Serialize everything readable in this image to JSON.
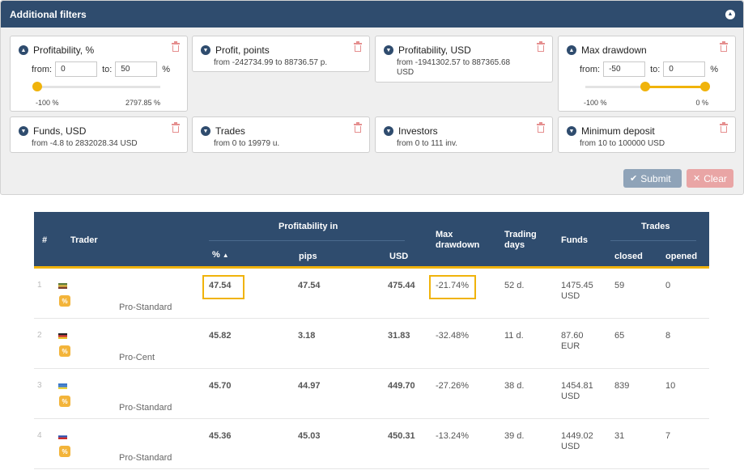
{
  "panel": {
    "title": "Additional filters",
    "collapse_icon": "chevron-up-icon",
    "filters": [
      {
        "id": "profitability-pct",
        "title": "Profitability, %",
        "from_label": "from:",
        "from_value": "0",
        "to_label": "to:",
        "to_value": "50",
        "unit": "%",
        "scale_min": "-100 %",
        "scale_max": "2797.85 %",
        "range_low_pct": 0,
        "range_high_pct": 0
      },
      {
        "id": "profit-points",
        "title": "Profit, points",
        "range": "from -242734.99 to 88736.57 p."
      },
      {
        "id": "profitability-usd",
        "title": "Profitability, USD",
        "range_line1": "from -1941302.57 to 887365.68",
        "range_line2": "USD"
      },
      {
        "id": "max-drawdown",
        "title": "Max drawdown",
        "from_label": "from:",
        "from_value": "-50",
        "to_label": "to:",
        "to_value": "0",
        "unit": "%",
        "scale_min": "-100 %",
        "scale_max": "0 %",
        "range_low_pct": 50,
        "range_high_pct": 100
      },
      {
        "id": "funds-usd",
        "title": "Funds, USD",
        "range": "from -4.8 to 2832028.34 USD"
      },
      {
        "id": "trades",
        "title": "Trades",
        "range": "from 0 to 19979 u."
      },
      {
        "id": "investors",
        "title": "Investors",
        "range": "from 0 to 111 inv."
      },
      {
        "id": "min-deposit",
        "title": "Minimum deposit",
        "range": "from 10 to 100000 USD"
      }
    ],
    "submit_label": "Submit",
    "clear_label": "Clear"
  },
  "table": {
    "headers": {
      "num": "#",
      "trader": "Trader",
      "profitability_in": "Profitability in",
      "pct": "%",
      "pips": "pips",
      "usd": "USD",
      "max_drawdown_1": "Max",
      "max_drawdown_2": "drawdown",
      "trading_days_1": "Trading",
      "trading_days_2": "days",
      "funds": "Funds",
      "trades": "Trades",
      "closed": "closed",
      "opened": "opened"
    },
    "rows": [
      {
        "num": "1",
        "account": "Pro-Standard",
        "pct": "47.54",
        "pips": "47.54",
        "usd": "475.44",
        "drawdown": "-21.74%",
        "days": "52 d.",
        "funds_1": "1475.45",
        "funds_2": "USD",
        "closed": "59",
        "opened": "0",
        "flag": [
          "#5b7b3a",
          "#d8b13a",
          "#7a3d2a"
        ]
      },
      {
        "num": "2",
        "account": "Pro-Cent",
        "pct": "45.82",
        "pips": "3.18",
        "usd": "31.83",
        "drawdown": "-32.48%",
        "days": "11 d.",
        "funds_1": "87.60",
        "funds_2": "EUR",
        "closed": "65",
        "opened": "8",
        "flag": [
          "#222222",
          "#cc2a2a",
          "#e8c22a"
        ]
      },
      {
        "num": "3",
        "account": "Pro-Standard",
        "pct": "45.70",
        "pips": "44.97",
        "usd": "449.70",
        "drawdown": "-27.26%",
        "days": "38 d.",
        "funds_1": "1454.81",
        "funds_2": "USD",
        "closed": "839",
        "opened": "10",
        "flag": [
          "#3a78c8",
          "#3a78c8",
          "#e8d23a"
        ]
      },
      {
        "num": "4",
        "account": "Pro-Standard",
        "pct": "45.36",
        "pips": "45.03",
        "usd": "450.31",
        "drawdown": "-13.24%",
        "days": "39 d.",
        "funds_1": "1449.02",
        "funds_2": "USD",
        "closed": "31",
        "opened": "7",
        "flag": [
          "#ffffff",
          "#2a4fb0",
          "#cc2a2a"
        ]
      }
    ],
    "badge_icon": "percent-icon",
    "sort_icon": "sort-asc-icon",
    "accent": "#f0b30b",
    "header_bg": "#2f4c6e"
  }
}
